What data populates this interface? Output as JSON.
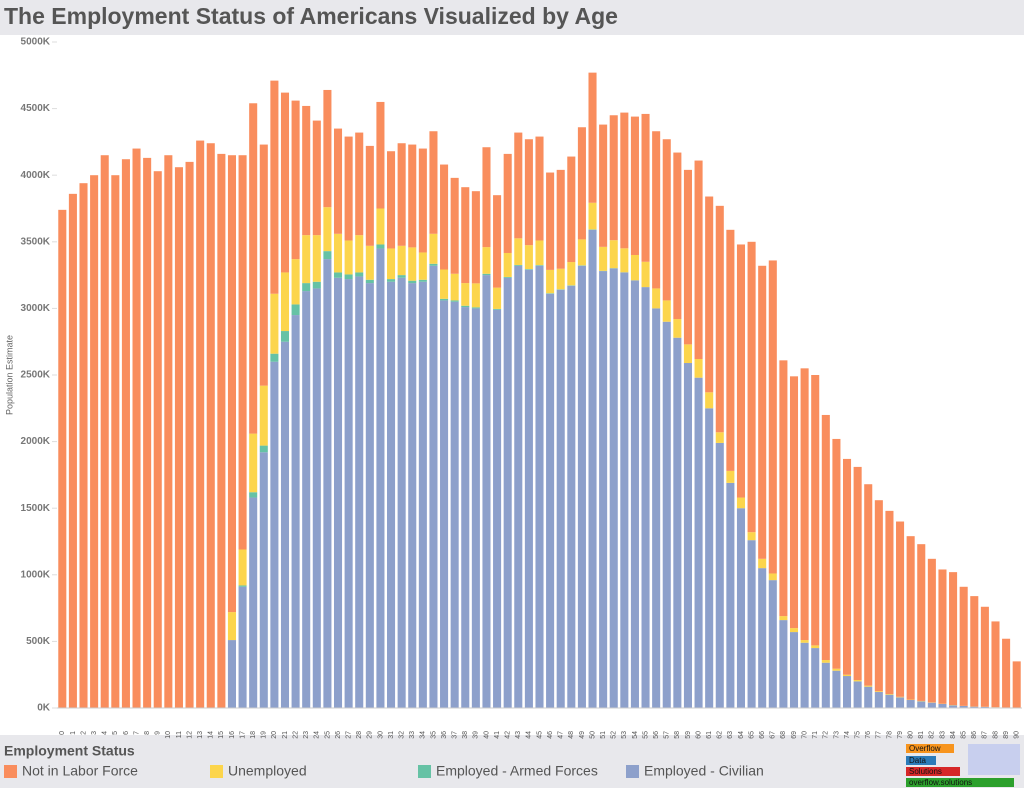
{
  "chart_data": {
    "type": "stacked_bar",
    "title": "The Employment Status of Americans Visualized by Age",
    "y_label": "Population Estimate",
    "legend_title": "Employment Status",
    "categories": [
      "0",
      "1",
      "2",
      "3",
      "4",
      "5",
      "6",
      "7",
      "8",
      "9",
      "10",
      "11",
      "12",
      "13",
      "14",
      "15",
      "16",
      "17",
      "18",
      "19",
      "20",
      "21",
      "22",
      "23",
      "24",
      "25",
      "26",
      "27",
      "28",
      "29",
      "30",
      "31",
      "32",
      "33",
      "34",
      "35",
      "36",
      "37",
      "38",
      "39",
      "40",
      "41",
      "42",
      "43",
      "44",
      "45",
      "46",
      "47",
      "48",
      "49",
      "50",
      "51",
      "52",
      "53",
      "54",
      "55",
      "56",
      "57",
      "58",
      "59",
      "60",
      "61",
      "62",
      "63",
      "64",
      "65",
      "66",
      "67",
      "68",
      "69",
      "70",
      "71",
      "72",
      "73",
      "74",
      "75",
      "76",
      "77",
      "78",
      "79",
      "80",
      "81",
      "82",
      "83",
      "84",
      "85",
      "86",
      "87",
      "88",
      "89",
      "90"
    ],
    "series": [
      {
        "name": "Not in Labor Force",
        "color": "#f98d5d",
        "values": [
          3740,
          3860,
          3940,
          4000,
          4150,
          4000,
          4120,
          4200,
          4130,
          4030,
          4150,
          4060,
          4100,
          4260,
          4240,
          4160,
          3430,
          2960,
          2480,
          1810,
          1600,
          1350,
          1190,
          970,
          860,
          880,
          790,
          780,
          770,
          750,
          800,
          730,
          770,
          772,
          780,
          770,
          788,
          720,
          720,
          692,
          750,
          694,
          744,
          794,
          795,
          780,
          731,
          742,
          792,
          842,
          977,
          918,
          938,
          1019,
          1039,
          1110,
          1180,
          1210,
          1250,
          1310,
          1490,
          1470,
          1700,
          1810,
          1900,
          2180,
          2200,
          2350,
          1920,
          1890,
          2040,
          2030,
          1840,
          1725,
          1620,
          1600,
          1512,
          1434,
          1375,
          1316,
          1227,
          1177,
          1078,
          1008,
          998,
          894,
          829,
          751,
          644,
          516,
          348
        ]
      },
      {
        "name": "Unemployed",
        "color": "#fcd54c",
        "values": [
          0,
          0,
          0,
          0,
          0,
          0,
          0,
          0,
          0,
          0,
          0,
          0,
          0,
          0,
          0,
          0,
          210,
          270,
          440,
          450,
          450,
          440,
          340,
          360,
          350,
          330,
          290,
          255,
          280,
          255,
          270,
          230,
          220,
          250,
          205,
          225,
          220,
          200,
          170,
          180,
          200,
          160,
          180,
          200,
          180,
          185,
          175,
          155,
          175,
          195,
          200,
          180,
          210,
          180,
          190,
          190,
          150,
          160,
          140,
          140,
          140,
          120,
          80,
          90,
          80,
          60,
          70,
          50,
          30,
          30,
          20,
          20,
          20,
          15,
          10,
          10,
          8,
          6,
          5,
          4,
          3,
          3,
          2,
          2,
          2,
          1,
          1,
          1,
          1,
          1,
          0
        ]
      },
      {
        "name": "Employed - Armed Forces",
        "color": "#66c2a5",
        "values": [
          0,
          0,
          0,
          0,
          0,
          0,
          0,
          0,
          0,
          0,
          0,
          0,
          0,
          0,
          0,
          0,
          0,
          10,
          40,
          50,
          60,
          80,
          80,
          60,
          50,
          60,
          40,
          35,
          30,
          25,
          30,
          20,
          20,
          18,
          15,
          15,
          12,
          10,
          10,
          8,
          10,
          6,
          6,
          6,
          5,
          5,
          4,
          3,
          3,
          3,
          3,
          2,
          2,
          1,
          1,
          0,
          0,
          0,
          0,
          0,
          0,
          0,
          0,
          0,
          0,
          0,
          0,
          0,
          0,
          0,
          0,
          0,
          0,
          0,
          0,
          0,
          0,
          0,
          0,
          0,
          0,
          0,
          0,
          0,
          0,
          0,
          0,
          0,
          0,
          0,
          0
        ]
      },
      {
        "name": "Employed - Civilian",
        "color": "#8da0cb",
        "values": [
          0,
          0,
          0,
          0,
          0,
          0,
          0,
          0,
          0,
          0,
          0,
          0,
          0,
          0,
          0,
          0,
          510,
          910,
          1580,
          1920,
          2600,
          2750,
          2950,
          3130,
          3150,
          3370,
          3230,
          3220,
          3240,
          3190,
          3450,
          3200,
          3230,
          3190,
          3200,
          3320,
          3060,
          3050,
          3010,
          3000,
          3250,
          2990,
          3230,
          3320,
          3290,
          3320,
          3110,
          3140,
          3170,
          3320,
          3590,
          3280,
          3300,
          3270,
          3210,
          3160,
          3000,
          2900,
          2780,
          2590,
          2480,
          2250,
          1990,
          1690,
          1500,
          1260,
          1050,
          960,
          660,
          570,
          490,
          450,
          340,
          280,
          240,
          200,
          160,
          120,
          100,
          80,
          60,
          50,
          40,
          30,
          20,
          15,
          10,
          8,
          5,
          3,
          2
        ]
      }
    ],
    "ylim": [
      0,
      5000
    ],
    "yticks": [
      {
        "value": 0,
        "label": "0K"
      },
      {
        "value": 500,
        "label": "500K"
      },
      {
        "value": 1000,
        "label": "1000K"
      },
      {
        "value": 1500,
        "label": "1500K"
      },
      {
        "value": 2000,
        "label": "2000K"
      },
      {
        "value": 2500,
        "label": "2500K"
      },
      {
        "value": 3000,
        "label": "3000K"
      },
      {
        "value": 3500,
        "label": "3500K"
      },
      {
        "value": 4000,
        "label": "4000K"
      },
      {
        "value": 4500,
        "label": "4500K"
      },
      {
        "value": 5000,
        "label": "5000K"
      }
    ],
    "grid": false
  },
  "logo": [
    "Overflow",
    "Data",
    "Solutions",
    "overflow.solutions"
  ]
}
